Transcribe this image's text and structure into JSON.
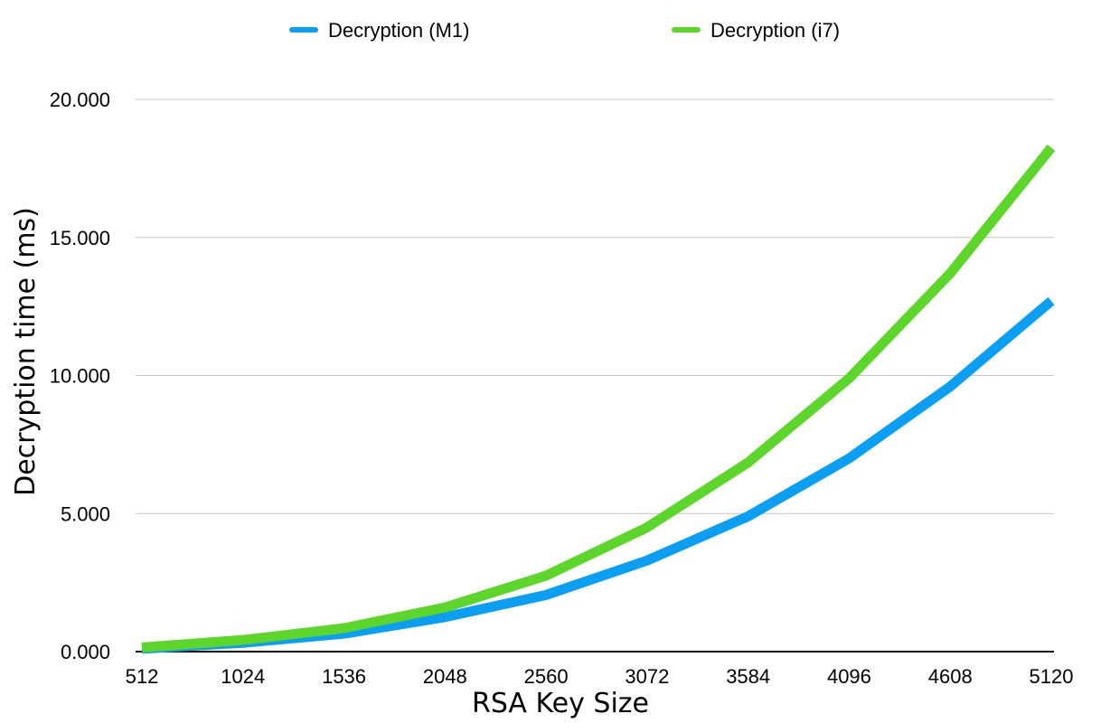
{
  "chart_data": {
    "type": "line",
    "title": "",
    "xlabel": "RSA Key Size",
    "ylabel": "Decryption time (ms)",
    "categories": [
      "512",
      "1024",
      "1536",
      "2048",
      "2560",
      "3072",
      "3584",
      "4096",
      "4608",
      "5120"
    ],
    "ylim": [
      0,
      20
    ],
    "yticks": [
      0,
      5,
      10,
      15,
      20
    ],
    "ytick_labels": [
      "0.000",
      "5.000",
      "10.000",
      "15.000",
      "20.000"
    ],
    "grid": true,
    "legend_position": "top",
    "series": [
      {
        "name": "Decryption (M1)",
        "color": "#0a9ff2",
        "values": [
          0.1,
          0.32,
          0.65,
          1.25,
          2.05,
          3.3,
          4.9,
          7.0,
          9.6,
          12.7
        ]
      },
      {
        "name": "Decryption (i7)",
        "color": "#5dd62c",
        "values": [
          0.15,
          0.42,
          0.85,
          1.6,
          2.75,
          4.5,
          6.85,
          9.9,
          13.7,
          18.25
        ]
      }
    ]
  }
}
